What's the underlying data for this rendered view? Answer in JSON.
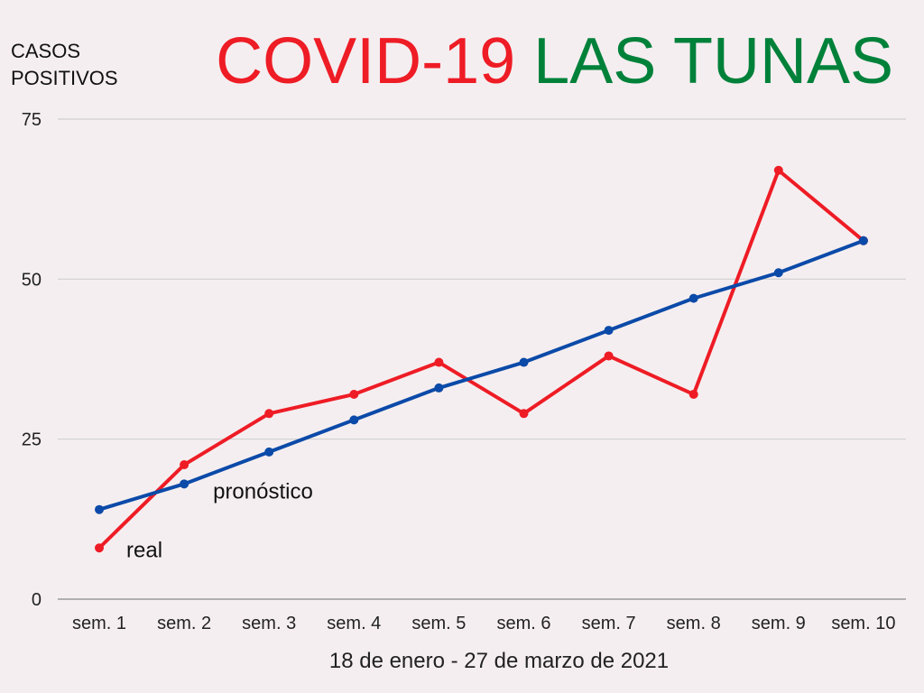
{
  "chart_data": {
    "type": "line",
    "title": {
      "parts": [
        {
          "text": "COVID-19",
          "color": "#ee1c25"
        },
        {
          "text": "LAS TUNAS",
          "color": "#00813a"
        }
      ]
    },
    "ylabel_lines": [
      "CASOS",
      "POSITIVOS"
    ],
    "xlabel": "18 de enero - 27 de marzo de 2021",
    "categories": [
      "sem. 1",
      "sem. 2",
      "sem. 3",
      "sem. 4",
      "sem. 5",
      "sem. 6",
      "sem. 7",
      "sem. 8",
      "sem. 9",
      "sem. 10"
    ],
    "ylim": [
      0,
      75
    ],
    "yticks": [
      0,
      25,
      50,
      75
    ],
    "grid": true,
    "series": [
      {
        "name": "real",
        "color": "#ee1c25",
        "values": [
          8,
          21,
          29,
          32,
          37,
          29,
          38,
          32,
          67,
          56
        ]
      },
      {
        "name": "pronóstico",
        "color": "#0b4aa8",
        "values": [
          14,
          18,
          23,
          28,
          33,
          37,
          42,
          47,
          51,
          56
        ]
      }
    ]
  }
}
